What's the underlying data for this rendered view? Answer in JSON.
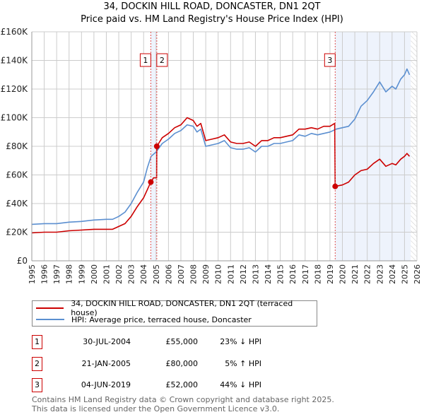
{
  "chart_data": {
    "type": "line",
    "title": "34, DOCKIN HILL ROAD, DONCASTER, DN1 2QT",
    "subtitle": "Price paid vs. HM Land Registry's House Price Index (HPI)",
    "xlim": [
      1995,
      2026
    ],
    "ylim": [
      0,
      160000
    ],
    "x_ticks": [
      "1995",
      "1996",
      "1997",
      "1998",
      "1999",
      "2000",
      "2001",
      "2002",
      "2003",
      "2004",
      "2005",
      "2006",
      "2007",
      "2008",
      "2009",
      "2010",
      "2011",
      "2012",
      "2013",
      "2014",
      "2015",
      "2016",
      "2017",
      "2018",
      "2019",
      "2020",
      "2021",
      "2022",
      "2023",
      "2024",
      "2025",
      "2026"
    ],
    "y_ticks": [
      {
        "v": 0,
        "label": "£0"
      },
      {
        "v": 20000,
        "label": "£20K"
      },
      {
        "v": 40000,
        "label": "£40K"
      },
      {
        "v": 60000,
        "label": "£60K"
      },
      {
        "v": 80000,
        "label": "£80K"
      },
      {
        "v": 100000,
        "label": "£100K"
      },
      {
        "v": 120000,
        "label": "£120K"
      },
      {
        "v": 140000,
        "label": "£140K"
      },
      {
        "v": 160000,
        "label": "£160K"
      }
    ],
    "grid": true,
    "legend_placement": "below",
    "series": [
      {
        "name": "34, DOCKIN HILL ROAD, DONCASTER, DN1 2QT (terraced house)",
        "color": "#cc0000",
        "points": [
          [
            1995,
            19.5
          ],
          [
            1996,
            20
          ],
          [
            1997,
            20
          ],
          [
            1998,
            21
          ],
          [
            1999,
            21.5
          ],
          [
            2000,
            22
          ],
          [
            2001,
            22
          ],
          [
            2001.5,
            22
          ],
          [
            2002,
            24
          ],
          [
            2002.5,
            26
          ],
          [
            2003,
            31
          ],
          [
            2003.5,
            38
          ],
          [
            2004,
            44
          ],
          [
            2004.58,
            55
          ],
          [
            2004.8,
            58
          ],
          [
            2005.05,
            58
          ],
          [
            2005.06,
            80
          ],
          [
            2005.5,
            86
          ],
          [
            2006,
            89
          ],
          [
            2006.5,
            93
          ],
          [
            2007,
            95
          ],
          [
            2007.5,
            100
          ],
          [
            2008,
            98
          ],
          [
            2008.3,
            94
          ],
          [
            2008.6,
            96
          ],
          [
            2009,
            84
          ],
          [
            2009.5,
            85
          ],
          [
            2010,
            86
          ],
          [
            2010.5,
            88
          ],
          [
            2011,
            83
          ],
          [
            2011.5,
            82
          ],
          [
            2012,
            82
          ],
          [
            2012.5,
            83
          ],
          [
            2013,
            80
          ],
          [
            2013.5,
            84
          ],
          [
            2014,
            84
          ],
          [
            2014.5,
            86
          ],
          [
            2015,
            86
          ],
          [
            2015.5,
            87
          ],
          [
            2016,
            88
          ],
          [
            2016.5,
            92
          ],
          [
            2017,
            92
          ],
          [
            2017.5,
            93
          ],
          [
            2018,
            92
          ],
          [
            2018.5,
            94
          ],
          [
            2019,
            94
          ],
          [
            2019.38,
            96
          ],
          [
            2019.42,
            52
          ],
          [
            2020,
            53
          ],
          [
            2020.5,
            55
          ],
          [
            2021,
            60
          ],
          [
            2021.5,
            63
          ],
          [
            2022,
            64
          ],
          [
            2022.5,
            68
          ],
          [
            2023,
            71
          ],
          [
            2023.5,
            66
          ],
          [
            2024,
            68
          ],
          [
            2024.3,
            67
          ],
          [
            2024.7,
            71
          ],
          [
            2025,
            73
          ],
          [
            2025.2,
            75
          ],
          [
            2025.4,
            73
          ]
        ]
      },
      {
        "name": "HPI: Average price, terraced house, Doncaster",
        "color": "#5b8fd0",
        "points": [
          [
            1995,
            25.5
          ],
          [
            1996,
            26
          ],
          [
            1997,
            26
          ],
          [
            1998,
            27
          ],
          [
            1999,
            27.5
          ],
          [
            2000,
            28.5
          ],
          [
            2001,
            29
          ],
          [
            2001.5,
            29
          ],
          [
            2002,
            31
          ],
          [
            2002.5,
            34
          ],
          [
            2003,
            40
          ],
          [
            2003.5,
            48
          ],
          [
            2004,
            55
          ],
          [
            2004.3,
            65
          ],
          [
            2004.6,
            73
          ],
          [
            2005,
            76
          ],
          [
            2005.5,
            82
          ],
          [
            2006,
            85
          ],
          [
            2006.5,
            89
          ],
          [
            2007,
            91
          ],
          [
            2007.5,
            95
          ],
          [
            2008,
            94
          ],
          [
            2008.3,
            90
          ],
          [
            2008.6,
            92
          ],
          [
            2009,
            80
          ],
          [
            2009.5,
            81
          ],
          [
            2010,
            82
          ],
          [
            2010.5,
            84
          ],
          [
            2011,
            79
          ],
          [
            2011.5,
            78
          ],
          [
            2012,
            78
          ],
          [
            2012.5,
            79
          ],
          [
            2013,
            76
          ],
          [
            2013.5,
            80
          ],
          [
            2014,
            80
          ],
          [
            2014.5,
            82
          ],
          [
            2015,
            82
          ],
          [
            2015.5,
            83
          ],
          [
            2016,
            84
          ],
          [
            2016.5,
            88
          ],
          [
            2017,
            87
          ],
          [
            2017.5,
            89
          ],
          [
            2018,
            88
          ],
          [
            2018.5,
            89
          ],
          [
            2019,
            90
          ],
          [
            2019.5,
            92
          ],
          [
            2020,
            93
          ],
          [
            2020.5,
            94
          ],
          [
            2021,
            99
          ],
          [
            2021.5,
            108
          ],
          [
            2022,
            112
          ],
          [
            2022.5,
            118
          ],
          [
            2023,
            125
          ],
          [
            2023.5,
            118
          ],
          [
            2024,
            122
          ],
          [
            2024.3,
            120
          ],
          [
            2024.7,
            127
          ],
          [
            2025,
            130
          ],
          [
            2025.2,
            134
          ],
          [
            2025.4,
            130
          ]
        ]
      }
    ],
    "y_unit": "thousands GBP",
    "sales": [
      {
        "num": "1",
        "x": 2004.58,
        "value": 55,
        "date": "30-JUL-2004",
        "price": "£55,000",
        "hpi": "23% ↓ HPI"
      },
      {
        "num": "2",
        "x": 2005.06,
        "value": 80,
        "date": "21-JAN-2005",
        "price": "£80,000",
        "hpi": "5% ↑ HPI"
      },
      {
        "num": "3",
        "x": 2019.42,
        "value": 52,
        "date": "04-JUN-2019",
        "price": "£52,000",
        "hpi": "44% ↓ HPI"
      }
    ],
    "forecast_from": 2025.5
  },
  "footer": {
    "line1": "Contains HM Land Registry data © Crown copyright and database right 2025.",
    "line2": "This data is licensed under the Open Government Licence v3.0."
  }
}
